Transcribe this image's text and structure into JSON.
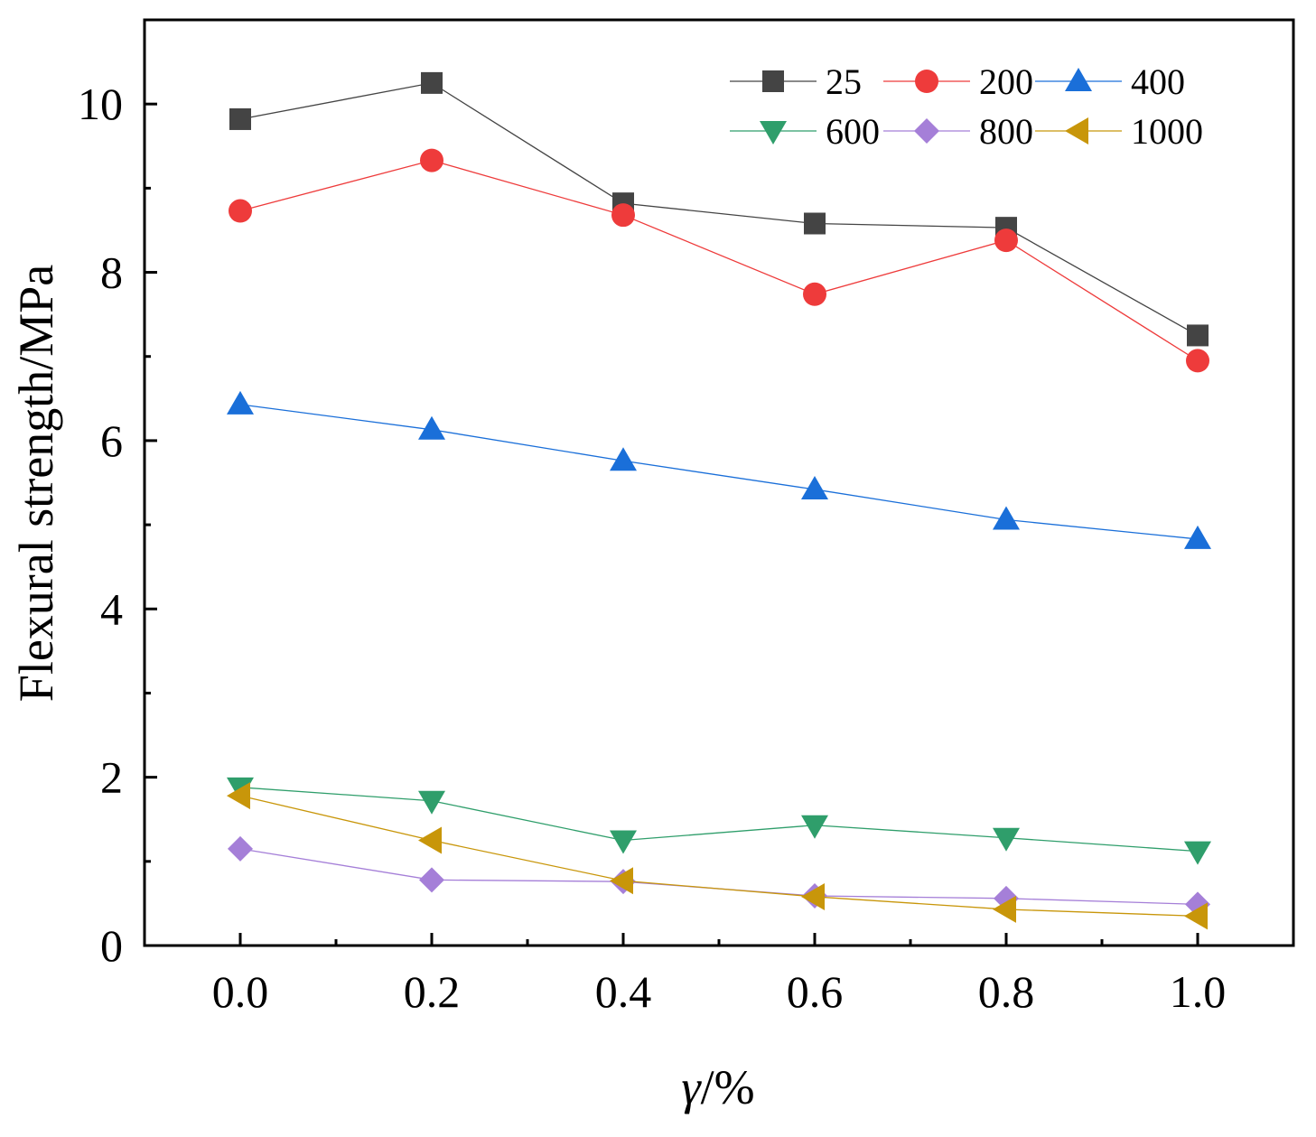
{
  "chart_data": {
    "type": "line",
    "title": "",
    "xlabel": "γ/%",
    "xlabel_symbol": "γ",
    "xlabel_unit": "/%",
    "ylabel": "Flexural strength/MPa",
    "xlim": [
      -0.1,
      1.1
    ],
    "ylim": [
      0,
      11
    ],
    "x": [
      0.0,
      0.2,
      0.4,
      0.6,
      0.8,
      1.0
    ],
    "x_tick_labels": [
      "0.0",
      "0.2",
      "0.4",
      "0.6",
      "0.8",
      "1.0"
    ],
    "y_ticks": [
      0,
      2,
      4,
      6,
      8,
      10
    ],
    "y_tick_labels": [
      "0",
      "2",
      "4",
      "6",
      "8",
      "10"
    ],
    "grid": false,
    "legend_position": "top-right",
    "series": [
      {
        "name": "25",
        "color": "#444444",
        "marker": "square",
        "values": [
          9.82,
          10.25,
          8.82,
          8.58,
          8.53,
          7.25
        ]
      },
      {
        "name": "200",
        "color": "#ee3b3b",
        "marker": "circle",
        "values": [
          8.73,
          9.33,
          8.68,
          7.74,
          8.38,
          6.95
        ]
      },
      {
        "name": "400",
        "color": "#1a6fd9",
        "marker": "triangle-up",
        "values": [
          6.43,
          6.13,
          5.76,
          5.42,
          5.06,
          4.83
        ]
      },
      {
        "name": "600",
        "color": "#2f9e6b",
        "marker": "triangle-down",
        "values": [
          1.88,
          1.72,
          1.25,
          1.43,
          1.28,
          1.12
        ]
      },
      {
        "name": "800",
        "color": "#a57fd8",
        "marker": "diamond",
        "values": [
          1.15,
          0.78,
          0.76,
          0.59,
          0.56,
          0.49
        ]
      },
      {
        "name": "1000",
        "color": "#c8960a",
        "marker": "triangle-left",
        "values": [
          1.78,
          1.25,
          0.77,
          0.58,
          0.43,
          0.35
        ]
      }
    ]
  }
}
